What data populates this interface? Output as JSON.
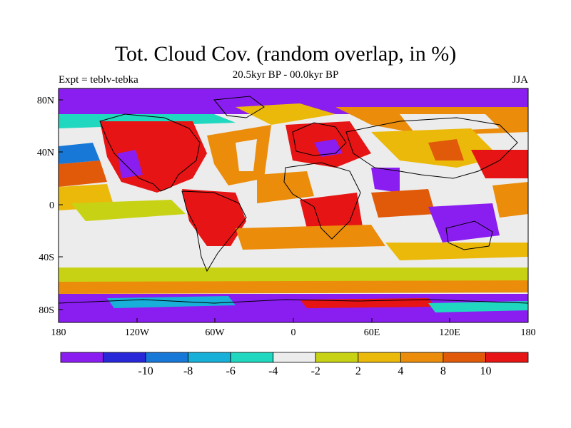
{
  "map": {
    "title": "Tot. Cloud Cov. (random overlap, in %)",
    "subtitle": "20.5kyr BP - 00.0kyr BP",
    "left_label": "Expt = teblv-tebka",
    "right_label": "JJA",
    "lat_ticks": [
      "80N",
      "40N",
      "0",
      "40S",
      "80S"
    ],
    "lon_ticks": [
      "180",
      "120W",
      "60W",
      "0",
      "60E",
      "120E",
      "180"
    ]
  },
  "colorbar": {
    "colors": [
      "#8a1ef0",
      "#2828d8",
      "#1878d8",
      "#18b0d8",
      "#20d8c0",
      "#ececec",
      "#c8d214",
      "#ebb90a",
      "#eb8c0a",
      "#e15a0a",
      "#e61414"
    ],
    "labels": [
      "-10",
      "-8",
      "-6",
      "-4",
      "-2",
      "2",
      "4",
      "8",
      "10"
    ]
  }
}
